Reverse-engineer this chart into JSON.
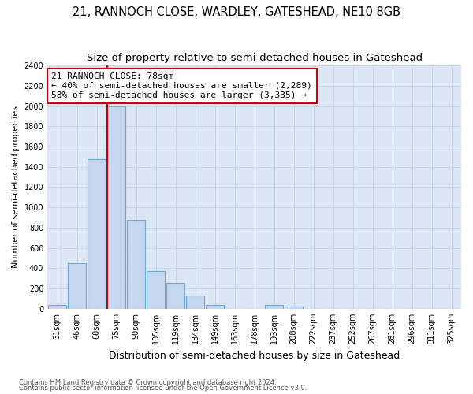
{
  "title": "21, RANNOCH CLOSE, WARDLEY, GATESHEAD, NE10 8GB",
  "subtitle": "Size of property relative to semi-detached houses in Gateshead",
  "xlabel": "Distribution of semi-detached houses by size in Gateshead",
  "ylabel": "Number of semi-detached properties",
  "footer1": "Contains HM Land Registry data © Crown copyright and database right 2024.",
  "footer2": "Contains public sector information licensed under the Open Government Licence v3.0.",
  "categories": [
    "31sqm",
    "46sqm",
    "60sqm",
    "75sqm",
    "90sqm",
    "105sqm",
    "119sqm",
    "134sqm",
    "149sqm",
    "163sqm",
    "178sqm",
    "193sqm",
    "208sqm",
    "222sqm",
    "237sqm",
    "252sqm",
    "267sqm",
    "281sqm",
    "296sqm",
    "311sqm",
    "325sqm"
  ],
  "values": [
    40,
    450,
    1475,
    2000,
    875,
    375,
    255,
    130,
    40,
    0,
    0,
    40,
    25,
    0,
    0,
    0,
    0,
    0,
    0,
    0,
    0
  ],
  "bar_color": "#c5d8f0",
  "bar_edge_color": "#6aaad4",
  "vline_x_index": 3,
  "annotation_text_line1": "21 RANNOCH CLOSE: 78sqm",
  "annotation_text_line2": "← 40% of semi-detached houses are smaller (2,289)",
  "annotation_text_line3": "58% of semi-detached houses are larger (3,335) →",
  "annotation_box_color": "#ffffff",
  "annotation_box_edge_color": "#cc0000",
  "vline_color": "#cc0000",
  "ylim": [
    0,
    2400
  ],
  "yticks": [
    0,
    200,
    400,
    600,
    800,
    1000,
    1200,
    1400,
    1600,
    1800,
    2000,
    2200,
    2400
  ],
  "grid_color": "#c8d4e8",
  "bg_color": "#dde6f5",
  "title_fontsize": 10.5,
  "subtitle_fontsize": 9.5,
  "xlabel_fontsize": 9,
  "ylabel_fontsize": 8,
  "tick_fontsize": 7,
  "annotation_fontsize": 8
}
